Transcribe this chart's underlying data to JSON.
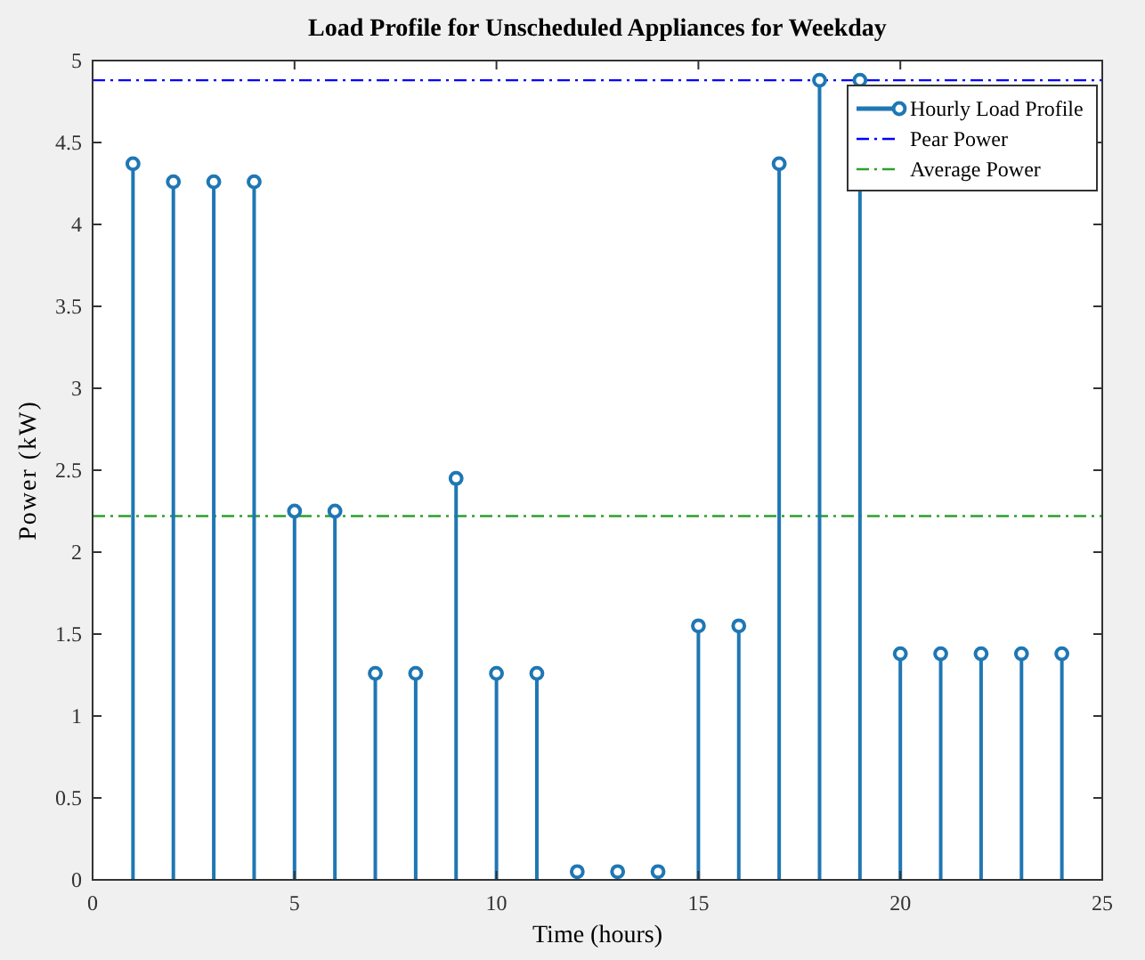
{
  "chart_data": {
    "type": "lollipop",
    "title": "Load Profile for Unscheduled Appliances for Weekday",
    "xlabel": "Time (hours)",
    "ylabel": "Power (kW)",
    "x": [
      1,
      2,
      3,
      4,
      5,
      6,
      7,
      8,
      9,
      10,
      11,
      12,
      13,
      14,
      15,
      16,
      17,
      18,
      19,
      20,
      21,
      22,
      23,
      24
    ],
    "series": [
      {
        "name": "Hourly Load Profile",
        "color": "#1f77b4",
        "values": [
          4.37,
          4.26,
          4.26,
          4.26,
          2.25,
          2.25,
          1.26,
          1.26,
          2.45,
          1.26,
          1.26,
          0.05,
          0.05,
          0.05,
          1.55,
          1.55,
          4.37,
          4.88,
          4.88,
          1.38,
          1.38,
          1.38,
          1.38,
          1.38
        ]
      }
    ],
    "xlim": [
      0,
      25
    ],
    "xticks": [
      0,
      5,
      10,
      15,
      20,
      25
    ],
    "ylim": [
      0,
      5
    ],
    "yticks": [
      0,
      0.5,
      1,
      1.5,
      2,
      2.5,
      3,
      3.5,
      4,
      4.5,
      5
    ],
    "ref_lines": [
      {
        "axis": "y",
        "value": 4.88,
        "label": "Pear Power",
        "color": "#0000ff",
        "line_style": "dashed"
      },
      {
        "axis": "y",
        "value": 2.22,
        "label": "Average Power",
        "color": "#2ca02c",
        "line_style": "dashed"
      }
    ],
    "marker": "circle",
    "legend": "top right",
    "grid": false
  }
}
